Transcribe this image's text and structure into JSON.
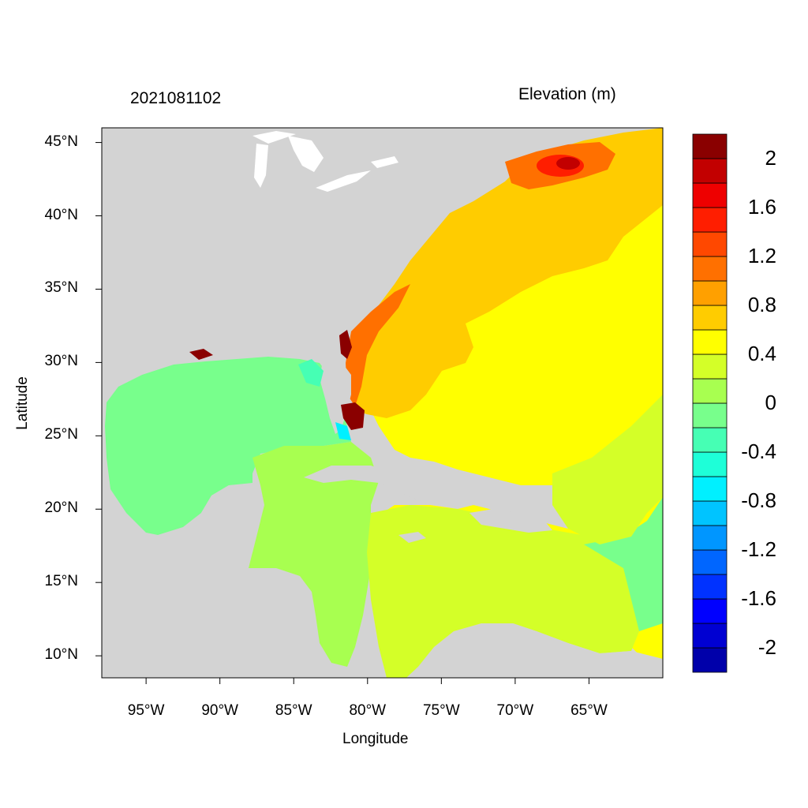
{
  "title_left": "2021081102",
  "title_right": "Elevation (m)",
  "x_axis": {
    "label": "Longitude",
    "range_deg": [
      -98,
      -60
    ],
    "ticks": [
      {
        "value": -95,
        "label": "95°W"
      },
      {
        "value": -90,
        "label": "90°W"
      },
      {
        "value": -85,
        "label": "85°W"
      },
      {
        "value": -80,
        "label": "80°W"
      },
      {
        "value": -75,
        "label": "75°W"
      },
      {
        "value": -70,
        "label": "70°W"
      },
      {
        "value": -65,
        "label": "65°W"
      }
    ]
  },
  "y_axis": {
    "label": "Latitude",
    "range_deg": [
      8.5,
      46
    ],
    "ticks": [
      {
        "value": 10,
        "label": "10°N"
      },
      {
        "value": 15,
        "label": "15°N"
      },
      {
        "value": 20,
        "label": "20°N"
      },
      {
        "value": 25,
        "label": "25°N"
      },
      {
        "value": 30,
        "label": "30°N"
      },
      {
        "value": 35,
        "label": "35°N"
      },
      {
        "value": 40,
        "label": "40°N"
      },
      {
        "value": 45,
        "label": "45°N"
      }
    ]
  },
  "colorbar": {
    "levels": [
      -2.2,
      -2.0,
      -1.8,
      -1.6,
      -1.4,
      -1.2,
      -1.0,
      -0.8,
      -0.6,
      -0.4,
      -0.2,
      0.0,
      0.2,
      0.4,
      0.6,
      0.8,
      1.0,
      1.2,
      1.4,
      1.6,
      1.8,
      2.0,
      2.2
    ],
    "colors": [
      "#0000aa",
      "#0000d2",
      "#0000ff",
      "#0032ff",
      "#0066ff",
      "#0096ff",
      "#00c4ff",
      "#00f0ff",
      "#1effd8",
      "#46ffb4",
      "#78ff8c",
      "#a8ff50",
      "#d4ff28",
      "#ffff00",
      "#ffcc00",
      "#ffa000",
      "#ff7000",
      "#ff4800",
      "#ff1e00",
      "#ee0000",
      "#c20000",
      "#8a0000"
    ],
    "labels": [
      {
        "value": -2.0,
        "text": "-2"
      },
      {
        "value": -1.6,
        "text": "-1.6"
      },
      {
        "value": -1.2,
        "text": "-1.2"
      },
      {
        "value": -0.8,
        "text": "-0.8"
      },
      {
        "value": -0.4,
        "text": "-0.4"
      },
      {
        "value": 0.0,
        "text": "0"
      },
      {
        "value": 0.4,
        "text": "0.4"
      },
      {
        "value": 0.8,
        "text": "0.8"
      },
      {
        "value": 1.2,
        "text": "1.2"
      },
      {
        "value": 1.6,
        "text": "1.6"
      },
      {
        "value": 2.0,
        "text": "2"
      }
    ]
  },
  "colors": {
    "land": "#d3d3d3",
    "lakes": "#ffffff",
    "gulf_of_mexico": "#78ff8c",
    "caribbean_west": "#a8ff50",
    "caribbean_central": "#d4ff28",
    "atlantic_open": "#ffff00",
    "atlantic_shelf": "#ffcc00",
    "gulf_of_maine": "#ff7000",
    "gulf_of_maine_core": "#ff1e00",
    "surge_dark": "#8a0000"
  }
}
